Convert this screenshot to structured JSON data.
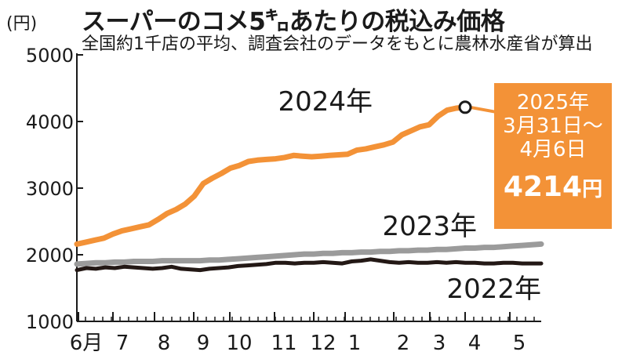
{
  "title": "スーパーのコメ5㌔あたりの税込み価格",
  "subtitle": "全国約1千店の平均、調査会社のデータをもとに農林水産省が算出",
  "y_unit": "(円)",
  "callout": {
    "date_lines": [
      "2025年",
      "3月31日～",
      "4月6日"
    ],
    "value": "4214",
    "unit": "円"
  },
  "colors": {
    "y2024": "#f39237",
    "y2023": "#9b9b9b",
    "y2022": "#231815",
    "callout_bg": "#f39237"
  },
  "chart_data": {
    "type": "line",
    "title": "スーパーのコメ5㌔あたりの税込み価格",
    "subtitle": "全国約1千店の平均、調査会社のデータをもとに農林水産省が算出",
    "ylabel": "(円)",
    "ylim": [
      1000,
      5000
    ],
    "yticks": [
      1000,
      2000,
      3000,
      4000,
      5000
    ],
    "xlabel": "",
    "x_ticks": [
      "6月",
      "7",
      "8",
      "9",
      "10",
      "11",
      "12",
      "1",
      "2",
      "3",
      "4",
      "5"
    ],
    "grid": false,
    "series": [
      {
        "name": "2024年",
        "color": "#f39237",
        "values": [
          2160,
          2190,
          2220,
          2250,
          2310,
          2360,
          2390,
          2420,
          2450,
          2530,
          2620,
          2680,
          2760,
          2880,
          3070,
          3150,
          3220,
          3300,
          3340,
          3400,
          3420,
          3430,
          3440,
          3460,
          3490,
          3480,
          3470,
          3480,
          3490,
          3500,
          3510,
          3570,
          3590,
          3620,
          3650,
          3690,
          3800,
          3860,
          3920,
          3950,
          4080,
          4170,
          4200,
          4214
        ]
      },
      {
        "name": "2023年",
        "color": "#9b9b9b",
        "values": [
          1860,
          1870,
          1880,
          1880,
          1890,
          1890,
          1900,
          1900,
          1900,
          1910,
          1910,
          1910,
          1910,
          1910,
          1920,
          1920,
          1930,
          1940,
          1950,
          1960,
          1970,
          1980,
          1990,
          2000,
          2010,
          2010,
          2020,
          2020,
          2030,
          2030,
          2040,
          2040,
          2050,
          2050,
          2060,
          2060,
          2070,
          2070,
          2080,
          2080,
          2090,
          2100,
          2100,
          2110,
          2110,
          2120,
          2130,
          2140,
          2150,
          2160
        ]
      },
      {
        "name": "2022年",
        "color": "#231815",
        "values": [
          1770,
          1800,
          1790,
          1810,
          1800,
          1820,
          1810,
          1800,
          1790,
          1800,
          1820,
          1790,
          1780,
          1770,
          1790,
          1800,
          1810,
          1830,
          1840,
          1850,
          1860,
          1880,
          1880,
          1870,
          1880,
          1880,
          1890,
          1880,
          1870,
          1900,
          1910,
          1930,
          1910,
          1890,
          1880,
          1890,
          1880,
          1880,
          1890,
          1880,
          1890,
          1880,
          1880,
          1870,
          1870,
          1880,
          1880,
          1870,
          1870,
          1870
        ]
      }
    ],
    "annotation": {
      "point_date": "2025年3月31日～4月6日",
      "value": 4214,
      "unit": "円"
    }
  }
}
